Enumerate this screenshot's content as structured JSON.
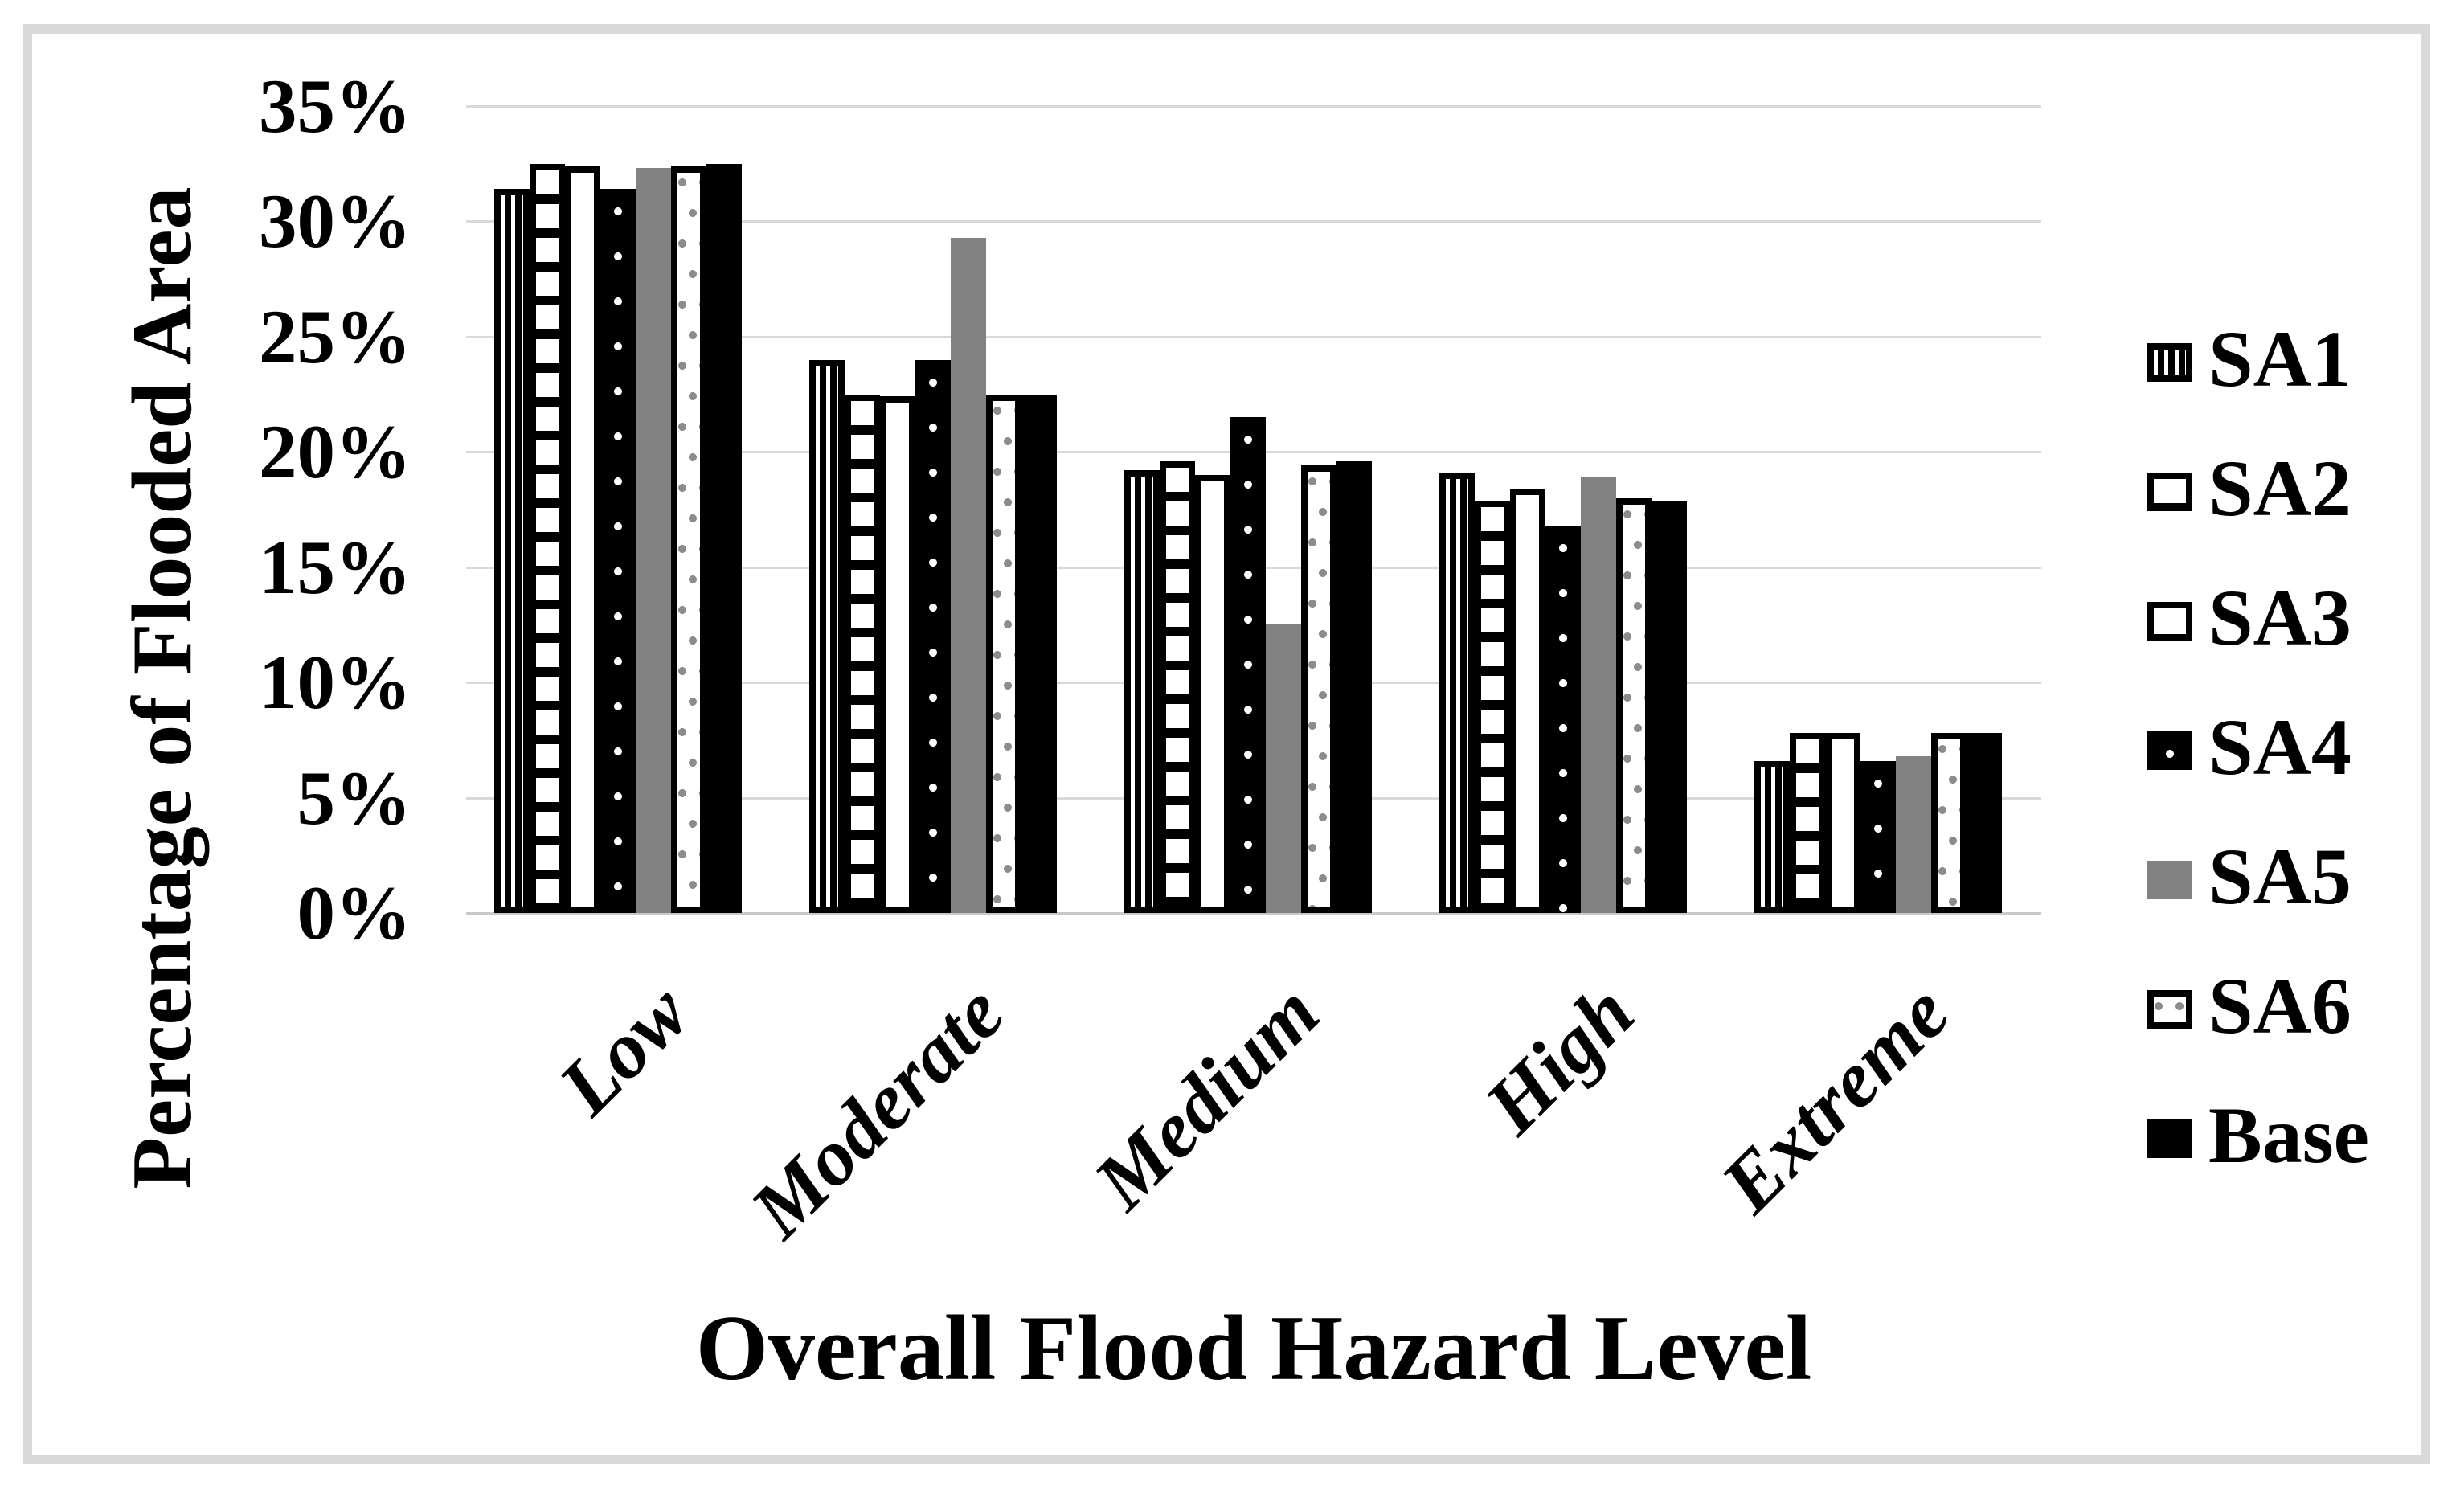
{
  "figure": {
    "background": "#ffffff",
    "border_color": "#d9d9d9"
  },
  "chart_data": {
    "type": "bar",
    "title": "",
    "xlabel": "Overall Flood Hazard Level",
    "ylabel": "Percentage of Flooded Area",
    "categories": [
      "Low",
      "Moderate",
      "Medium",
      "High",
      "Extreme"
    ],
    "series": [
      {
        "name": "SA1",
        "pattern": "vertical-stripes",
        "values": [
          31.4,
          24.0,
          19.2,
          19.1,
          6.6
        ]
      },
      {
        "name": "SA2",
        "pattern": "horizontal-stripes",
        "values": [
          32.5,
          22.5,
          19.6,
          17.9,
          7.8
        ]
      },
      {
        "name": "SA3",
        "pattern": "white",
        "values": [
          32.4,
          22.4,
          19.0,
          18.4,
          7.8
        ]
      },
      {
        "name": "SA4",
        "pattern": "black-white-dots",
        "values": [
          31.4,
          24.0,
          21.5,
          16.8,
          6.6
        ]
      },
      {
        "name": "SA5",
        "pattern": "solid-gray",
        "values": [
          32.3,
          29.3,
          12.5,
          18.9,
          6.8
        ]
      },
      {
        "name": "SA6",
        "pattern": "white-gray-dots",
        "values": [
          32.4,
          22.5,
          19.4,
          18.0,
          7.8
        ]
      },
      {
        "name": "Base",
        "pattern": "solid-black",
        "values": [
          32.5,
          22.5,
          19.6,
          17.9,
          7.8
        ]
      }
    ],
    "ylim": [
      0,
      35
    ],
    "ytick_step": 5,
    "ytick_labels": [
      "0%",
      "5%",
      "10%",
      "15%",
      "20%",
      "25%",
      "30%",
      "35%"
    ],
    "grid": true,
    "legend_position": "right",
    "colors": {
      "black": "#000000",
      "gray_bar": "#828282",
      "dot_gray": "#8c8c8c",
      "gridline": "#d9d9d9",
      "axis_line": "#c8c8c8",
      "frame": "#d9d9d9"
    }
  }
}
